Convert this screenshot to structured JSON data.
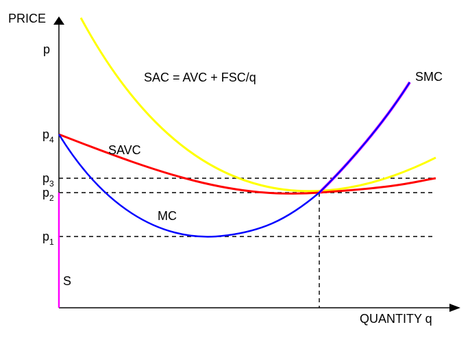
{
  "axes": {
    "y_title": "PRICE",
    "y_var": "p",
    "x_title": "QUANTITY q"
  },
  "curves": {
    "sac": {
      "label": "SAC = AVC + FSC/q",
      "color": "#ffff00"
    },
    "savc": {
      "label": "SAVC",
      "color": "#ff0000"
    },
    "mc": {
      "label": "MC",
      "color": "#0000ff"
    },
    "smc": {
      "label": "SMC",
      "color": "#ff00ff"
    },
    "supply": {
      "label": "S",
      "color": "#ff00ff"
    }
  },
  "price_levels": [
    {
      "base": "p",
      "sub": "4"
    },
    {
      "base": "p",
      "sub": "3"
    },
    {
      "base": "p",
      "sub": "2"
    },
    {
      "base": "p",
      "sub": "1"
    }
  ],
  "colors": {
    "axis": "#000000",
    "guide": "#000000"
  }
}
